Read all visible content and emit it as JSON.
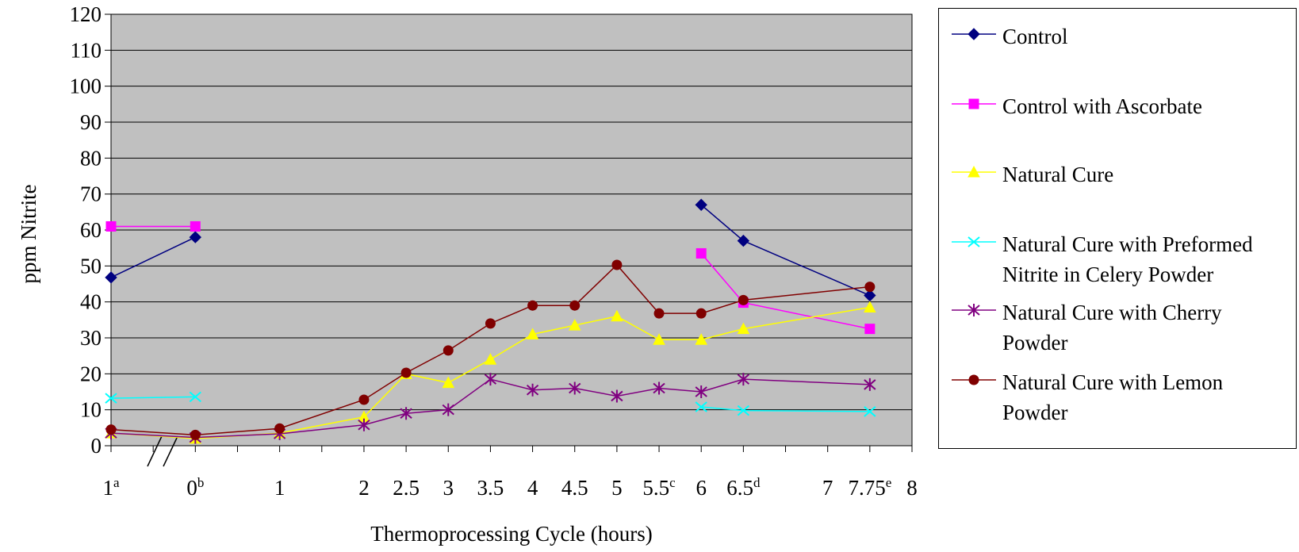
{
  "chart_data": {
    "type": "line",
    "ylabel": "ppm Nitrite",
    "xlabel": "Thermoprocessing Cycle (hours)",
    "ylim": [
      0,
      120
    ],
    "yticks": [
      0,
      10,
      20,
      30,
      40,
      50,
      60,
      70,
      80,
      90,
      100,
      110,
      120
    ],
    "grid": true,
    "legend_position": "right",
    "x_tick_labels": [
      {
        "label": "1",
        "sup": "a"
      },
      {
        "label": "0",
        "sup": "b"
      },
      {
        "label": "1",
        "sup": ""
      },
      {
        "label": "2",
        "sup": ""
      },
      {
        "label": "2.5",
        "sup": ""
      },
      {
        "label": "3",
        "sup": ""
      },
      {
        "label": "3.5",
        "sup": ""
      },
      {
        "label": "4",
        "sup": ""
      },
      {
        "label": "4.5",
        "sup": ""
      },
      {
        "label": "5",
        "sup": ""
      },
      {
        "label": "5.5",
        "sup": "c"
      },
      {
        "label": "6",
        "sup": ""
      },
      {
        "label": "6.5",
        "sup": "d"
      },
      {
        "label": "7",
        "sup": ""
      },
      {
        "label": "7.75",
        "sup": "e"
      },
      {
        "label": "8",
        "sup": ""
      }
    ],
    "series": [
      {
        "name": "Control",
        "color": "#000080",
        "marker": "diamond",
        "points": [
          [
            -1,
            46.8
          ],
          [
            0,
            58.0
          ],
          [
            6,
            67.0
          ],
          [
            6.5,
            57.0
          ],
          [
            7.75,
            41.8
          ]
        ],
        "segments": [
          [
            0,
            1
          ],
          [
            2,
            4
          ]
        ]
      },
      {
        "name": "Control with Ascorbate",
        "color": "#FF00FF",
        "marker": "square",
        "points": [
          [
            -1,
            61.0
          ],
          [
            0,
            61.0
          ],
          [
            6,
            53.5
          ],
          [
            6.5,
            39.8
          ],
          [
            7.75,
            32.5
          ]
        ],
        "segments": [
          [
            0,
            1
          ],
          [
            2,
            4
          ]
        ]
      },
      {
        "name": "Natural Cure",
        "color": "#FFFF00",
        "marker": "triangle",
        "points": [
          [
            -1,
            3.5
          ],
          [
            0,
            2.0
          ],
          [
            1,
            3.5
          ],
          [
            2,
            8.0
          ],
          [
            2.5,
            20.0
          ],
          [
            3,
            17.5
          ],
          [
            3.5,
            24.0
          ],
          [
            4,
            31.0
          ],
          [
            4.5,
            33.5
          ],
          [
            5,
            36.0
          ],
          [
            5.5,
            29.5
          ],
          [
            6,
            29.5
          ],
          [
            6.5,
            32.5
          ],
          [
            7.75,
            38.5
          ]
        ],
        "segments": [
          [
            0,
            13
          ]
        ]
      },
      {
        "name": "Natural Cure with Preformed Nitrite in Celery Powder",
        "color": "#00FFFF",
        "marker": "x",
        "points": [
          [
            -1,
            13.2
          ],
          [
            0,
            13.6
          ],
          [
            6,
            10.8
          ],
          [
            6.5,
            9.8
          ],
          [
            7.75,
            9.5
          ]
        ],
        "segments": [
          [
            0,
            1
          ],
          [
            2,
            4
          ]
        ]
      },
      {
        "name": "Natural Cure with Cherry Powder",
        "color": "#800080",
        "marker": "asterisk",
        "points": [
          [
            -1,
            3.5
          ],
          [
            0,
            2.3
          ],
          [
            1,
            3.3
          ],
          [
            2,
            5.8
          ],
          [
            2.5,
            9.0
          ],
          [
            3,
            10.0
          ],
          [
            3.5,
            18.5
          ],
          [
            4,
            15.5
          ],
          [
            4.5,
            16.0
          ],
          [
            5,
            13.8
          ],
          [
            5.5,
            16.0
          ],
          [
            6,
            15.0
          ],
          [
            6.5,
            18.5
          ],
          [
            7.75,
            17.0
          ]
        ],
        "segments": [
          [
            0,
            13
          ]
        ]
      },
      {
        "name": "Natural Cure with Lemon Powder",
        "color": "#800000",
        "marker": "circle",
        "points": [
          [
            -1,
            4.5
          ],
          [
            0,
            3.0
          ],
          [
            1,
            4.8
          ],
          [
            2,
            12.8
          ],
          [
            2.5,
            20.3
          ],
          [
            3,
            26.5
          ],
          [
            3.5,
            34.0
          ],
          [
            4,
            39.0
          ],
          [
            4.5,
            39.0
          ],
          [
            5,
            50.3
          ],
          [
            5.5,
            36.8
          ],
          [
            6,
            36.8
          ],
          [
            6.5,
            40.5
          ],
          [
            7.75,
            44.2
          ]
        ],
        "segments": [
          [
            0,
            13
          ]
        ]
      }
    ]
  },
  "legend": {
    "items": [
      {
        "label": "Control",
        "color": "#000080",
        "marker": "diamond"
      },
      {
        "label": "Control with Ascorbate",
        "color": "#FF00FF",
        "marker": "square"
      },
      {
        "label": "Natural Cure",
        "color": "#FFFF00",
        "marker": "triangle"
      },
      {
        "label": "Natural Cure with Preformed\nNitrite in Celery Powder",
        "color": "#00FFFF",
        "marker": "x"
      },
      {
        "label": "Natural Cure with Cherry\nPowder",
        "color": "#800080",
        "marker": "asterisk"
      },
      {
        "label": "Natural Cure with Lemon\nPowder",
        "color": "#800000",
        "marker": "circle"
      }
    ]
  },
  "colors": {
    "plot_background": "#C0C0C0",
    "gridline": "#000000"
  }
}
